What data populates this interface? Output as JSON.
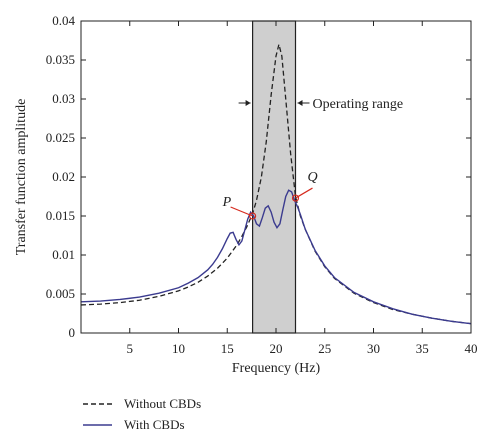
{
  "chart_data": {
    "type": "line",
    "xlabel": "Frequency (Hz)",
    "ylabel": "Transfer function amplitude",
    "xlim": [
      0,
      40
    ],
    "ylim": [
      0,
      0.04
    ],
    "x_ticks": [
      5,
      10,
      15,
      20,
      25,
      30,
      35,
      40
    ],
    "y_ticks": [
      "0",
      "0.005",
      "0.01",
      "0.015",
      "0.02",
      "0.025",
      "0.03",
      "0.035",
      "0.04"
    ],
    "grid": false,
    "legend_position": "bottom-left, below plot",
    "operating_range": {
      "x0": 17.6,
      "x1": 22.0,
      "label": "Operating range"
    },
    "points": [
      {
        "label": "P",
        "x": 17.6,
        "y": 0.015
      },
      {
        "label": "Q",
        "x": 22.0,
        "y": 0.0173
      }
    ],
    "series": [
      {
        "name": "Without CBDs",
        "style": "dashed",
        "color": "#222222",
        "x": [
          0,
          2,
          4,
          6,
          8,
          10,
          11,
          12,
          13,
          14,
          15,
          16,
          16.5,
          17,
          17.6,
          18,
          18.5,
          19,
          19.5,
          20,
          20.3,
          20.6,
          21,
          21.5,
          22,
          22.5,
          23,
          24,
          25,
          26,
          28,
          30,
          32,
          34,
          36,
          38,
          40
        ],
        "y": [
          0.0036,
          0.0037,
          0.0039,
          0.0042,
          0.0047,
          0.0054,
          0.0059,
          0.0065,
          0.0073,
          0.0083,
          0.0096,
          0.0113,
          0.0124,
          0.0136,
          0.0153,
          0.017,
          0.02,
          0.0245,
          0.0305,
          0.0355,
          0.037,
          0.0355,
          0.03,
          0.023,
          0.0175,
          0.015,
          0.0133,
          0.0105,
          0.0085,
          0.007,
          0.0051,
          0.0039,
          0.003,
          0.0024,
          0.0019,
          0.0015,
          0.0012
        ]
      },
      {
        "name": "With CBDs",
        "style": "solid",
        "color": "#3b3b8f",
        "x": [
          0,
          2,
          4,
          6,
          8,
          10,
          11,
          12,
          13,
          13.5,
          14,
          14.5,
          15,
          15.3,
          15.6,
          15.9,
          16.2,
          16.5,
          16.8,
          17.1,
          17.4,
          17.7,
          18.0,
          18.3,
          18.6,
          18.9,
          19.2,
          19.5,
          19.8,
          20.1,
          20.4,
          20.7,
          21.0,
          21.3,
          21.6,
          21.9,
          22.2,
          22.5,
          23,
          24,
          25,
          26,
          28,
          30,
          32,
          34,
          36,
          38,
          40
        ],
        "y": [
          0.004,
          0.0041,
          0.0043,
          0.0046,
          0.0051,
          0.0058,
          0.0064,
          0.0071,
          0.0081,
          0.0088,
          0.0097,
          0.0108,
          0.0121,
          0.0128,
          0.0129,
          0.012,
          0.0113,
          0.0118,
          0.0132,
          0.0146,
          0.0155,
          0.015,
          0.014,
          0.0137,
          0.0148,
          0.016,
          0.0163,
          0.0155,
          0.0142,
          0.0135,
          0.014,
          0.0158,
          0.0175,
          0.0183,
          0.0181,
          0.017,
          0.0162,
          0.0152,
          0.0133,
          0.0106,
          0.0086,
          0.0071,
          0.0052,
          0.004,
          0.0031,
          0.0024,
          0.0019,
          0.0015,
          0.0012
        ]
      }
    ]
  }
}
